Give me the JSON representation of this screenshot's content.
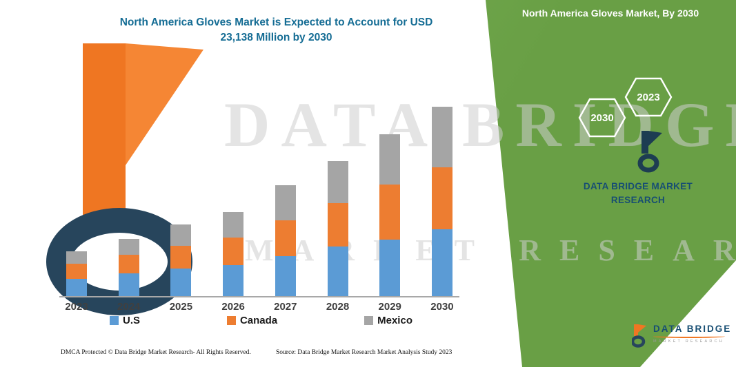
{
  "colors": {
    "panel_green": "#699f45",
    "panel_green_light": "#7cb85a",
    "title_teal": "#146c94",
    "brand_blue": "#174e73",
    "logo_orange": "#ef7622",
    "logo_navy": "#27455c"
  },
  "page": {
    "title_line1": "North America Gloves Market is Expected to Account for USD",
    "title_line2": "23,138 Million by 2030"
  },
  "watermark": {
    "line1": "DATA BRIDGE",
    "line2": "MARKET RESEARCH"
  },
  "side_panel": {
    "title": "North America Gloves Market, By 2030",
    "hexagons": [
      "2023",
      "2030"
    ],
    "brand_line1": "DATA BRIDGE MARKET",
    "brand_line2": "RESEARCH"
  },
  "bottom_logo": {
    "name": "DATA BRIDGE",
    "sub": "MARKET RESEARCH"
  },
  "footer": {
    "dmca": "DMCA Protected © Data Bridge Market Research-  All Rights Reserved.",
    "source": "Source: Data Bridge Market Research  Market Analysis Study 2023"
  },
  "chart_data": {
    "type": "bar",
    "stacked": true,
    "title": "North America Gloves Market is Expected to Account for USD 23,138 Million by 2030",
    "unit": "USD Million",
    "xlabel": "",
    "ylabel": "",
    "ylim": [
      0,
      24000
    ],
    "grid": false,
    "legend_position": "bottom",
    "categories": [
      "2023",
      "2024",
      "2025",
      "2026",
      "2027",
      "2028",
      "2029",
      "2030"
    ],
    "series": [
      {
        "name": "U.S",
        "color": "#5b9bd5",
        "values": [
          2100,
          2780,
          3360,
          3790,
          4880,
          6060,
          6900,
          8160
        ]
      },
      {
        "name": "Canada",
        "color": "#ed7d31",
        "values": [
          1850,
          2270,
          2780,
          3360,
          4370,
          5300,
          6730,
          7570
        ]
      },
      {
        "name": "Mexico",
        "color": "#a5a5a5",
        "values": [
          1500,
          1930,
          2610,
          3110,
          4290,
          5130,
          6140,
          7408
        ]
      }
    ],
    "totals": [
      5450,
      6980,
      8750,
      10260,
      13540,
      16490,
      19770,
      23138
    ]
  }
}
